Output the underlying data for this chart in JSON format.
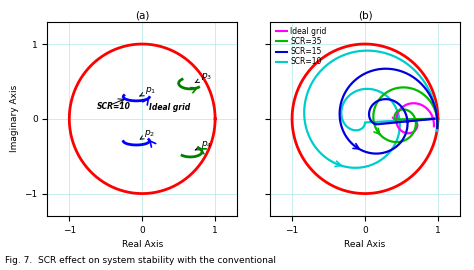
{
  "title_a": "(a)",
  "title_b": "(b)",
  "xlabel": "Real Axis",
  "ylabel": "Imaginary Axis",
  "xlim": [
    -1.3,
    1.3
  ],
  "ylim": [
    -1.3,
    1.3
  ],
  "xticks": [
    -1,
    0,
    1
  ],
  "yticks": [
    -1,
    0,
    1
  ],
  "circle_color": "#ff0000",
  "fig_caption": "Fig. 7.  SCR effect on system stability with the conventional",
  "subplot_b": {
    "ideal_color": "#ff00ff",
    "scr35_color": "#00bb00",
    "scr15_color": "#0000dd",
    "scr10_color": "#00cccc"
  }
}
